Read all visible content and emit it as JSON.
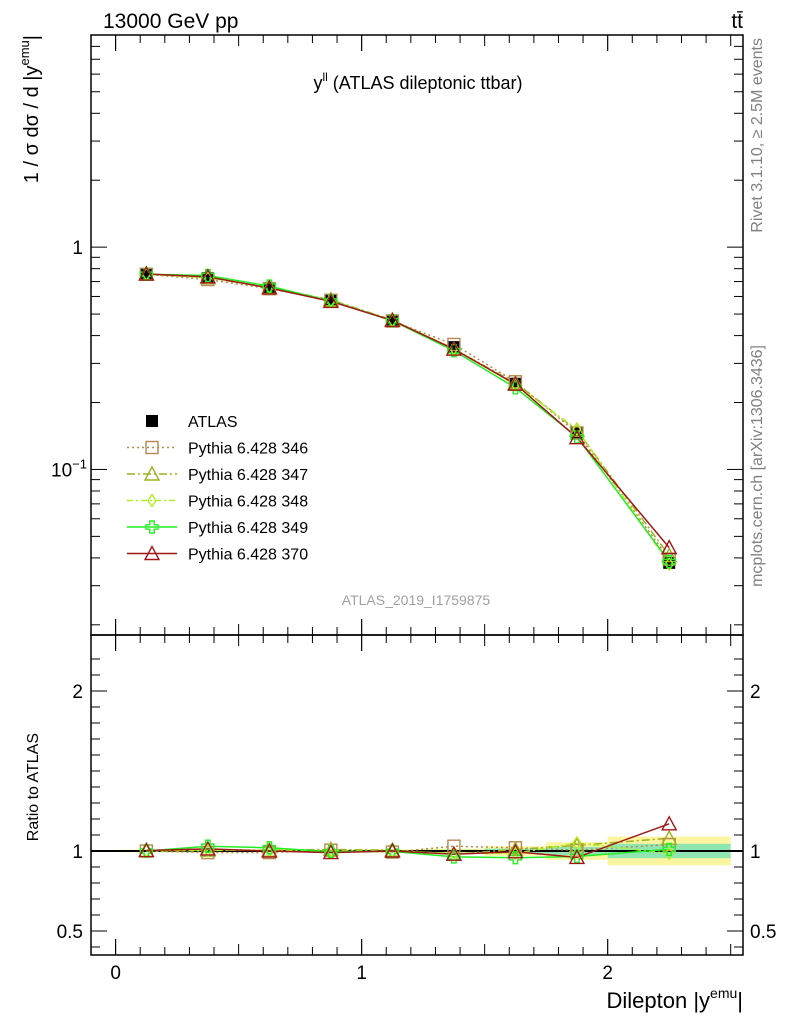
{
  "header": {
    "energy_label": "13000 GeV pp",
    "process_label": "tt̄"
  },
  "side_labels": {
    "rivet": "Rivet 3.1.10, ≥ 2.5M events",
    "mcplots": "mcplots.cern.ch [arXiv:1306.3436]"
  },
  "chart_data": [
    {
      "type": "line",
      "title_main": "y",
      "title_sup": "ll",
      "title_rest": " (ATLAS dileptonic ttbar)",
      "watermark": "ATLAS_2019_I1759875",
      "ylabel_main": "1 / σ  dσ / d |y",
      "ylabel_sup": "emu",
      "ylabel_end": "|",
      "yscale": "log",
      "xlim": [
        -0.1,
        2.55
      ],
      "ylim": [
        0.018,
        9.0
      ],
      "xticks": [
        {
          "v": 0,
          "label": "0"
        },
        {
          "v": 1,
          "label": "1"
        },
        {
          "v": 2,
          "label": "2"
        }
      ],
      "ytick_labels": [
        {
          "v": 1,
          "label": "1"
        },
        {
          "v": 0.1,
          "label": "10",
          "sup": "−1"
        }
      ],
      "x": [
        0.125,
        0.375,
        0.625,
        0.875,
        1.125,
        1.375,
        1.625,
        1.875,
        2.25
      ],
      "legend": [
        "ATLAS",
        "Pythia 6.428 346",
        "Pythia 6.428 347",
        "Pythia 6.428 348",
        "Pythia 6.428 349",
        "Pythia 6.428 370"
      ],
      "series": [
        {
          "name": "ATLAS",
          "color": "#000000",
          "marker": "filled-square",
          "values": [
            0.755,
            0.725,
            0.655,
            0.575,
            0.468,
            0.355,
            0.243,
            0.145,
            0.038
          ]
        },
        {
          "name": "Pythia 6.428 346",
          "color": "#b88850",
          "marker": "open-square",
          "dash": "2,3",
          "values": [
            0.755,
            0.715,
            0.65,
            0.577,
            0.465,
            0.365,
            0.248,
            0.146,
            0.0395
          ]
        },
        {
          "name": "Pythia 6.428 347",
          "color": "#a0b020",
          "marker": "open-triangle",
          "dash": "8,3,2,3",
          "values": [
            0.758,
            0.73,
            0.658,
            0.58,
            0.47,
            0.348,
            0.245,
            0.15,
            0.041
          ]
        },
        {
          "name": "Pythia 6.428 348",
          "color": "#b0f020",
          "marker": "open-diamond",
          "dash": "6,3,2,3",
          "values": [
            0.755,
            0.728,
            0.66,
            0.575,
            0.468,
            0.35,
            0.24,
            0.152,
            0.0375
          ]
        },
        {
          "name": "Pythia 6.428 349",
          "color": "#22ee22",
          "marker": "open-cross",
          "values": [
            0.755,
            0.745,
            0.668,
            0.572,
            0.467,
            0.342,
            0.233,
            0.14,
            0.0385
          ]
        },
        {
          "name": "Pythia 6.428 370",
          "color": "#a01818",
          "marker": "open-triangle",
          "values": [
            0.757,
            0.735,
            0.655,
            0.57,
            0.468,
            0.348,
            0.242,
            0.139,
            0.0445
          ]
        }
      ]
    },
    {
      "type": "line",
      "ylabel": "Ratio to ATLAS",
      "xlabel_main": "Dilepton |y",
      "xlabel_sup": "emu",
      "xlabel_end": "|",
      "xlim": [
        -0.1,
        2.55
      ],
      "ylim": [
        0.35,
        2.35
      ],
      "xticks": [
        {
          "v": 0,
          "label": "0"
        },
        {
          "v": 1,
          "label": "1"
        },
        {
          "v": 2,
          "label": "2"
        }
      ],
      "yticks": [
        {
          "v": 0.5,
          "label": "0.5"
        },
        {
          "v": 1,
          "label": "1"
        },
        {
          "v": 2,
          "label": "2"
        }
      ],
      "bin_edges": [
        0,
        0.25,
        0.5,
        0.75,
        1.0,
        1.25,
        1.5,
        1.75,
        2.0,
        2.5
      ],
      "band_outer": [
        0.008,
        0.008,
        0.008,
        0.008,
        0.01,
        0.015,
        0.03,
        0.055,
        0.09
      ],
      "band_inner": [
        0.004,
        0.004,
        0.004,
        0.004,
        0.005,
        0.008,
        0.015,
        0.025,
        0.045
      ],
      "x": [
        0.125,
        0.375,
        0.625,
        0.875,
        1.125,
        1.375,
        1.625,
        1.875,
        2.25
      ],
      "series": [
        {
          "name": "Pythia 6.428 346",
          "color": "#b88850",
          "marker": "open-square",
          "dash": "2,3",
          "values": [
            1.0,
            0.99,
            0.99,
            1.005,
            0.993,
            1.03,
            1.02,
            1.005,
            1.04
          ]
        },
        {
          "name": "Pythia 6.428 347",
          "color": "#a0b020",
          "marker": "open-triangle",
          "dash": "8,3,2,3",
          "values": [
            1.003,
            1.005,
            1.005,
            1.01,
            1.005,
            0.98,
            1.01,
            1.035,
            1.08
          ]
        },
        {
          "name": "Pythia 6.428 348",
          "color": "#b0f020",
          "marker": "open-diamond",
          "dash": "6,3,2,3",
          "values": [
            1.0,
            1.003,
            1.007,
            1.0,
            1.0,
            0.985,
            0.985,
            1.05,
            0.985
          ]
        },
        {
          "name": "Pythia 6.428 349",
          "color": "#22ee22",
          "marker": "open-cross",
          "values": [
            1.0,
            1.03,
            1.02,
            0.995,
            0.998,
            0.963,
            0.958,
            0.966,
            1.01
          ]
        },
        {
          "name": "Pythia 6.428 370",
          "color": "#a01818",
          "marker": "open-triangle",
          "values": [
            1.003,
            1.013,
            1.0,
            0.99,
            1.0,
            0.98,
            0.995,
            0.96,
            1.17
          ]
        }
      ]
    }
  ]
}
